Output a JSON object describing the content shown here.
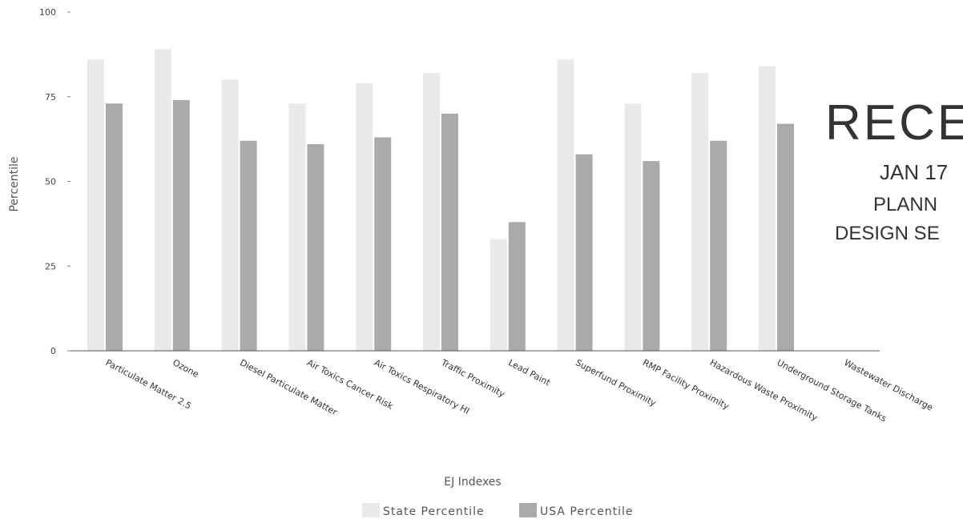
{
  "chart_data": {
    "type": "bar",
    "title": "",
    "xlabel": "EJ Indexes",
    "ylabel": "Percentile",
    "ylim": [
      0,
      100
    ],
    "yticks": [
      0,
      25,
      50,
      75,
      100
    ],
    "grid": false,
    "legend_position": "bottom",
    "categories": [
      "Particulate Matter 2.5",
      "Ozone",
      "Diesel Particulate Matter",
      "Air Toxics Cancer Risk",
      "Air Toxics Respiratory HI",
      "Traffic Proximity",
      "Lead Paint",
      "Superfund Proximity",
      "RMP Facility Proximity",
      "Hazardous Waste Proximity",
      "Underground Storage Tanks",
      "Wastewater Discharge"
    ],
    "series": [
      {
        "name": "State Percentile",
        "color": "#e9e9e9",
        "values": [
          86,
          89,
          80,
          73,
          79,
          82,
          33,
          86,
          73,
          82,
          84,
          null
        ]
      },
      {
        "name": "USA Percentile",
        "color": "#aaaaaa",
        "values": [
          73,
          74,
          62,
          61,
          63,
          70,
          38,
          58,
          56,
          62,
          67,
          null
        ]
      }
    ]
  },
  "stamp": {
    "word": "RECE",
    "date": "JAN 17",
    "line1": "PLANN",
    "line2": "DESIGN SE"
  }
}
